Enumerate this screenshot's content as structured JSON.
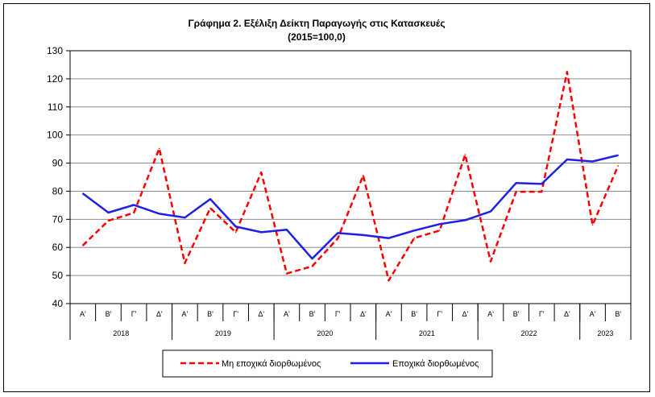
{
  "chart_data": {
    "type": "line",
    "title": "Γράφημα 2. Εξέλιξη  Δείκτη  Παραγωγής  στις Κατασκευές",
    "subtitle": "(2015=100,0)",
    "xlabel": "",
    "ylabel": "",
    "ylim": [
      40,
      130
    ],
    "yticks": [
      40,
      50,
      60,
      70,
      80,
      90,
      100,
      110,
      120,
      130
    ],
    "grid": true,
    "legend_position": "bottom",
    "categories": [
      "Α'",
      "Β'",
      "Γ'",
      "Δ'",
      "Α'",
      "Β'",
      "Γ'",
      "Δ'",
      "Α'",
      "Β'",
      "Γ'",
      "Δ'",
      "Α'",
      "Β'",
      "Γ'",
      "Δ'",
      "Α'",
      "Β'",
      "Γ'",
      "Δ'",
      "Α'",
      "Β'"
    ],
    "years": [
      {
        "label": "2018",
        "count": 4
      },
      {
        "label": "2019",
        "count": 4
      },
      {
        "label": "2020",
        "count": 4
      },
      {
        "label": "2021",
        "count": 4
      },
      {
        "label": "2022",
        "count": 4
      },
      {
        "label": "2023",
        "count": 2
      }
    ],
    "series": [
      {
        "name": "Μη εποχικά διορθωμένος",
        "color": "#ff0000",
        "style": "dashed",
        "values": [
          60.7,
          69.5,
          72.3,
          95.2,
          54.4,
          74.0,
          65.4,
          86.7,
          50.7,
          53.3,
          63.2,
          85.6,
          48.2,
          63.3,
          66.0,
          93.0,
          55.0,
          79.8,
          79.8,
          122.5,
          68.0,
          89.0
        ]
      },
      {
        "name": "Εποχικά διορθωμένος",
        "color": "#1f1fe6",
        "style": "solid",
        "values": [
          79.2,
          72.4,
          75.1,
          72.0,
          70.6,
          77.2,
          67.4,
          65.4,
          66.3,
          56.0,
          65.1,
          64.4,
          63.3,
          66.0,
          68.3,
          69.7,
          72.8,
          82.9,
          82.6,
          91.3,
          90.6,
          92.8
        ]
      }
    ]
  }
}
